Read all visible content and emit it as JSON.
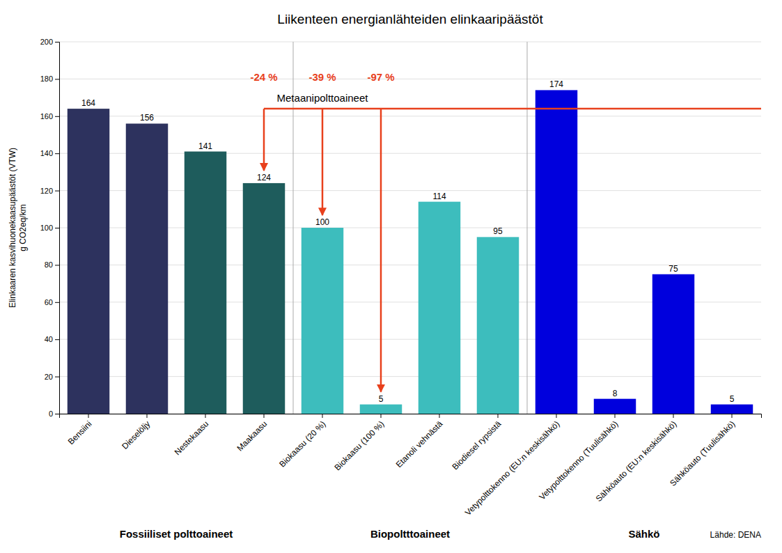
{
  "chart_data": {
    "type": "bar",
    "title": "Liikenteen energianlähteiden elinkaaripäästöt",
    "ylabel": [
      "Elinkaaren kasvihuonekaasupäästöt (VTW)",
      "g CO2eq/km"
    ],
    "categories": [
      "Bensiini",
      "Dieselöljy",
      "Nestekaasu",
      "Maakaasu",
      "Biokaasu (20 %)",
      "Biokaasu (100 %)",
      "Etanoli vehnästä",
      "Biodiesel rypsistä",
      "Vetypolttokenno (EU:n keskisähkö)",
      "Vetypolttokenno (Tuulisähkö)",
      "Sähköauto (EU:n keskisähkö)",
      "Sähköauto (Tuulisähkö)"
    ],
    "values": [
      164,
      156,
      141,
      124,
      100,
      5,
      114,
      95,
      174,
      8,
      75,
      5
    ],
    "colors": [
      "#2d325e",
      "#2d325e",
      "#1e5c5c",
      "#1e5c5c",
      "#3dbdbd",
      "#3dbdbd",
      "#3dbdbd",
      "#3dbdbd",
      "#0000dd",
      "#0000dd",
      "#0000dd",
      "#0000dd"
    ],
    "ylim": [
      0,
      200
    ],
    "yticks": [
      0,
      20,
      40,
      60,
      80,
      100,
      120,
      140,
      160,
      180,
      200
    ],
    "grid": true,
    "data_labels": true,
    "reference_line": {
      "value": 164,
      "color": "#e8401c",
      "from": "Maakaasu"
    },
    "arrows": [
      {
        "category": "Maakaasu",
        "label": "-24 %",
        "color": "#e8401c"
      },
      {
        "category": "Biokaasu (20 %)",
        "label": "-39 %",
        "color": "#e8401c"
      },
      {
        "category": "Biokaasu (100 %)",
        "label": "-97 %",
        "color": "#e8401c"
      }
    ],
    "annotations": [
      {
        "text": "Metaanipolttoaineet",
        "first": "Maakaasu",
        "last": "Biokaasu (100 %)"
      }
    ],
    "group_labels": [
      {
        "label": "Fossiiliset polttoaineet",
        "first": "Bensiini",
        "last": "Maakaasu"
      },
      {
        "label": "Biopoltttoaineet",
        "first": "Biokaasu (20 %)",
        "last": "Biodiesel rypsistä"
      },
      {
        "label": "Sähkö",
        "first": "Vetypolttokenno (EU:n keskisähkö)",
        "last": "Sähköauto (Tuulisähkö)"
      }
    ],
    "source": "Lähde: DENA"
  }
}
